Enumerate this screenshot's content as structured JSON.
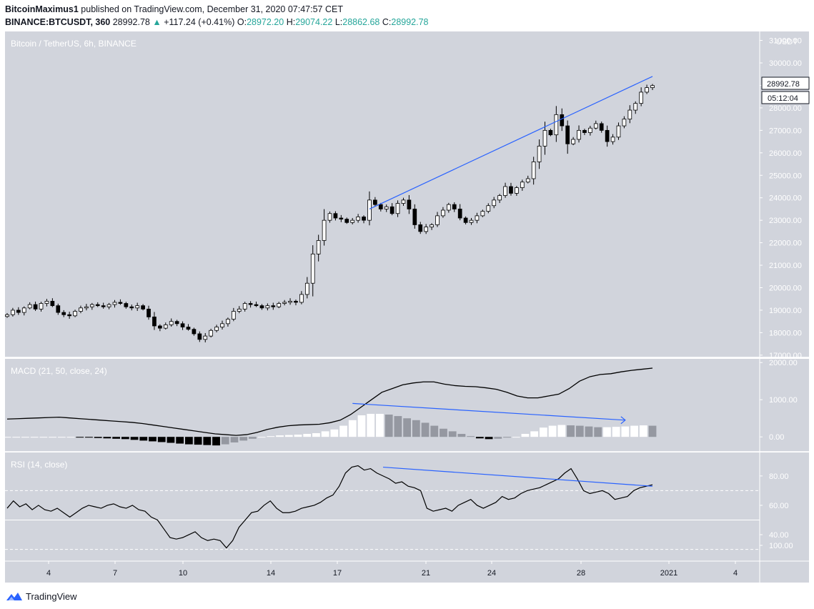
{
  "header": {
    "author": "BitcoinMaximus1",
    "published_text": "published on TradingView.com, December 31, 2020 07:47:57 CET",
    "symbol": "BINANCE:BTCUSDT, 360",
    "last": "28992.78",
    "arrow": "▲",
    "change": "+117.24 (+0.41%)",
    "o_label": "O:",
    "o_value": "28972.20",
    "h_label": "H:",
    "h_value": "29074.22",
    "l_label": "L:",
    "l_value": "28862.68",
    "c_label": "C:",
    "c_value": "28992.78"
  },
  "panels": {
    "price_title": "Bitcoin / TetherUS, 6h, BINANCE",
    "macd_title": "MACD (21, 50, close, 24)",
    "rsi_title": "RSI (14, close)",
    "currency": "USDT",
    "last_price_tag": "28992.78",
    "countdown_tag": "05:12:04"
  },
  "footer": {
    "brand": "TradingView"
  },
  "colors": {
    "panel_bg": "#d1d4dc",
    "up_candle": "#ffffff",
    "down_candle": "#000000",
    "trendline": "#2962ff",
    "macd_line": "#000000",
    "hist_light": "#ffffff",
    "hist_mid": "#9598a1",
    "hist_dark": "#000000"
  },
  "chart_data": [
    {
      "type": "candlestick",
      "title": "Bitcoin / TetherUS, 6h, BINANCE",
      "x_tick_labels": [
        "4",
        "7",
        "10",
        "14",
        "17",
        "21",
        "24",
        "28",
        "2021",
        "4"
      ],
      "y_tick_labels": [
        "17000.00",
        "18000.00",
        "19000.00",
        "20000.00",
        "21000.00",
        "22000.00",
        "23000.00",
        "24000.00",
        "25000.00",
        "26000.00",
        "27000.00",
        "28000.00",
        "29000.00",
        "30000.00",
        "31000.00"
      ],
      "ylim": [
        16900,
        31400
      ],
      "close_series": [
        18800,
        19000,
        18900,
        19100,
        19250,
        19050,
        19300,
        19400,
        19200,
        18900,
        18800,
        18750,
        18950,
        19100,
        19150,
        19250,
        19200,
        19150,
        19250,
        19350,
        19300,
        19150,
        19100,
        19200,
        19050,
        18700,
        18300,
        18200,
        18350,
        18500,
        18400,
        18250,
        18150,
        17950,
        17700,
        17850,
        18100,
        18250,
        18400,
        18600,
        18950,
        19050,
        19300,
        19250,
        19200,
        19100,
        19200,
        19150,
        19300,
        19350,
        19400,
        19350,
        19700,
        20200,
        21500,
        22100,
        23000,
        23300,
        23100,
        23050,
        22900,
        23000,
        23150,
        23000,
        23900,
        23700,
        23500,
        23600,
        23300,
        23750,
        23900,
        23500,
        22800,
        22500,
        22700,
        22800,
        23200,
        23450,
        23700,
        23500,
        23100,
        22900,
        23000,
        23200,
        23400,
        23650,
        23900,
        24100,
        24500,
        24200,
        24450,
        24700,
        24850,
        25600,
        26300,
        27000,
        26800,
        27700,
        27200,
        26400,
        26600,
        27000,
        26900,
        27100,
        27300,
        27000,
        26500,
        26700,
        27200,
        27500,
        27900,
        28200,
        28700,
        28900,
        28992.78
      ],
      "annotations": [
        {
          "type": "trendline",
          "from": {
            "x_index": 64,
            "y": 23500
          },
          "to": {
            "x_index": 114,
            "y": 29400
          }
        }
      ]
    },
    {
      "type": "line+histogram",
      "title": "MACD (21, 50, close, 24)",
      "y_tick_labels": [
        "0.00",
        "1000.00",
        "2000.00"
      ],
      "ylim": [
        -400,
        2100
      ],
      "macd_series": [
        480,
        490,
        500,
        510,
        520,
        530,
        510,
        490,
        470,
        450,
        430,
        410,
        390,
        360,
        320,
        280,
        240,
        200,
        160,
        120,
        80,
        60,
        40,
        60,
        120,
        200,
        260,
        300,
        320,
        330,
        340,
        380,
        450,
        600,
        800,
        1000,
        1200,
        1300,
        1400,
        1450,
        1480,
        1480,
        1420,
        1380,
        1360,
        1350,
        1320,
        1280,
        1200,
        1100,
        1050,
        1050,
        1100,
        1150,
        1300,
        1500,
        1620,
        1680,
        1700,
        1750,
        1790,
        1820,
        1850
      ],
      "histogram": [
        0,
        0,
        0,
        0,
        0,
        0,
        0,
        0,
        -10,
        -20,
        -30,
        -40,
        -50,
        -60,
        -80,
        -100,
        -120,
        -140,
        -160,
        -180,
        -200,
        -210,
        -220,
        -230,
        -200,
        -150,
        -100,
        -50,
        0,
        20,
        40,
        50,
        60,
        80,
        100,
        150,
        200,
        300,
        450,
        580,
        620,
        620,
        600,
        560,
        500,
        450,
        380,
        300,
        220,
        150,
        80,
        20,
        -40,
        -60,
        -50,
        -20,
        0,
        80,
        150,
        250,
        300,
        320,
        310,
        300,
        280,
        260,
        260,
        270,
        280,
        300,
        310,
        300
      ],
      "annotations": [
        {
          "type": "trendline",
          "from": {
            "x_index": 38,
            "y": 900
          },
          "to": {
            "x_index": 68,
            "y": 450
          }
        }
      ]
    },
    {
      "type": "line",
      "title": "RSI (14, close)",
      "y_tick_labels": [
        "40.00",
        "60.00",
        "80.00",
        "100.00"
      ],
      "ylim": [
        22,
        96
      ],
      "bands": [
        70,
        50,
        30
      ],
      "rsi_series": [
        58,
        63,
        59,
        61,
        57,
        60,
        57,
        56,
        58,
        55,
        52,
        55,
        58,
        60,
        59,
        58,
        60,
        61,
        59,
        58,
        60,
        57,
        56,
        52,
        50,
        44,
        38,
        37,
        38,
        40,
        42,
        38,
        36,
        37,
        36,
        31,
        36,
        45,
        50,
        55,
        56,
        60,
        63,
        58,
        55,
        55,
        56,
        58,
        59,
        60,
        62,
        65,
        67,
        73,
        82,
        86,
        87,
        84,
        85,
        82,
        80,
        78,
        75,
        76,
        73,
        72,
        70,
        58,
        56,
        57,
        58,
        56,
        60,
        62,
        64,
        60,
        58,
        60,
        62,
        66,
        64,
        65,
        68,
        70,
        71,
        72,
        74,
        76,
        78,
        82,
        85,
        78,
        70,
        68,
        69,
        70,
        68,
        64,
        65,
        66,
        70,
        72,
        73,
        74
      ],
      "annotations": [
        {
          "type": "trendline",
          "from": {
            "x_index": 60,
            "y": 86
          },
          "to": {
            "x_index": 103,
            "y": 73
          }
        }
      ]
    }
  ]
}
